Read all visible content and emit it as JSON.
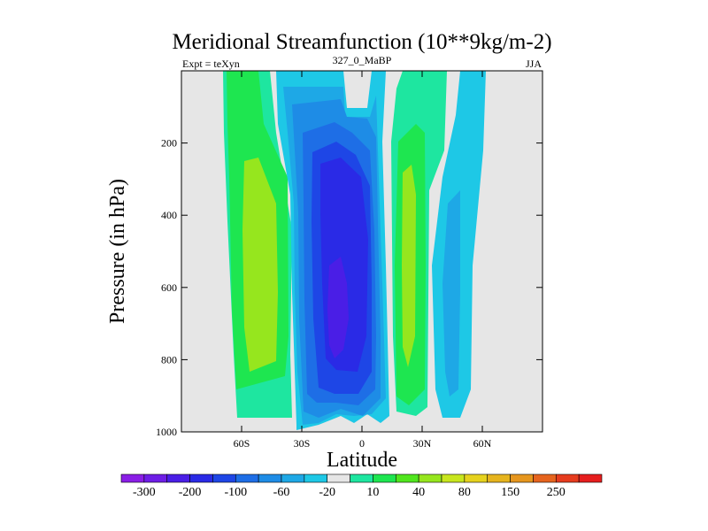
{
  "chart_data": {
    "type": "heatmap",
    "title": "Meridional Streamfunction (10**9kg/m-2)",
    "subtitle_left": "Expt = teXyn",
    "subtitle_center": "327_0_MaBP",
    "subtitle_right": "JJA",
    "xlabel": "Latitude",
    "ylabel": "Pressure (in hPa)",
    "xlim": [
      -90,
      90
    ],
    "ylim": [
      1000,
      0
    ],
    "x_ticks": [
      {
        "value": -60,
        "label": "60S"
      },
      {
        "value": -30,
        "label": "30S"
      },
      {
        "value": 0,
        "label": "0"
      },
      {
        "value": 30,
        "label": "30N"
      },
      {
        "value": 60,
        "label": "60N"
      }
    ],
    "y_ticks": [
      {
        "value": 200,
        "label": "200"
      },
      {
        "value": 400,
        "label": "400"
      },
      {
        "value": 600,
        "label": "600"
      },
      {
        "value": 800,
        "label": "800"
      },
      {
        "value": 1000,
        "label": "1000"
      }
    ],
    "background_color": "#e6e6e6",
    "colorbar": {
      "labels": [
        "-300",
        "-200",
        "-100",
        "-60",
        "-20",
        "10",
        "40",
        "80",
        "150",
        "250"
      ],
      "colors": [
        "#8a1ee6",
        "#6e1ee6",
        "#4a1ee6",
        "#2a2ae6",
        "#1e46e6",
        "#1e6ee6",
        "#1e8ce6",
        "#1ea8e6",
        "#1ec8e6",
        "#e6e6e6",
        "#1ee6a0",
        "#1ee650",
        "#50e61e",
        "#96e61e",
        "#c8e61e",
        "#e6d21e",
        "#e6b41e",
        "#e6961e",
        "#e6641e",
        "#e63c1e",
        "#e61e1e"
      ]
    },
    "cells": [
      {
        "name": "southern-cell",
        "sign": "positive",
        "core_value": 80,
        "lat_range": [
          -68,
          -35
        ],
        "p_range": [
          0,
          960
        ]
      },
      {
        "name": "equatorial-cell",
        "sign": "negative",
        "core_value": -100,
        "lat_range": [
          -35,
          10
        ],
        "p_range": [
          0,
          1000
        ]
      },
      {
        "name": "northern-positive-cell",
        "sign": "positive",
        "core_value": 80,
        "lat_range": [
          17,
          32
        ],
        "p_range": [
          0,
          960
        ]
      },
      {
        "name": "northern-negative-cell",
        "sign": "negative",
        "core_value": -20,
        "lat_range": [
          36,
          62
        ],
        "p_range": [
          0,
          960
        ]
      }
    ]
  }
}
